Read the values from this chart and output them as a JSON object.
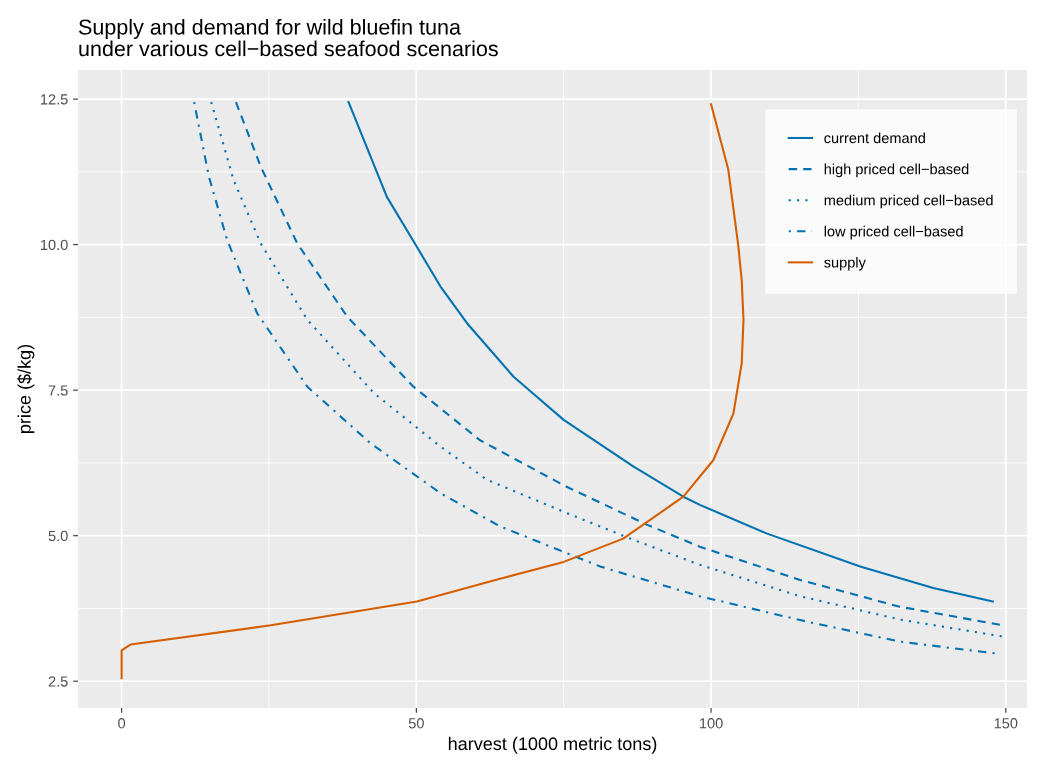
{
  "chart_data": {
    "type": "line",
    "title": "Supply and demand for wild bluefin tuna\nunder various cell−based seafood scenarios",
    "xlabel": "harvest (1000 metric tons)",
    "ylabel": "price ($/kg)",
    "xlim": [
      -7.4,
      153.6
    ],
    "ylim": [
      2.04,
      13.0
    ],
    "xticks": [
      0,
      50,
      100,
      150
    ],
    "yticks": [
      2.5,
      {
        "value": 5,
        "label": "5.0"
      },
      7.5,
      {
        "value": 10,
        "label": "10.0"
      },
      12.5
    ],
    "grid": true,
    "legend": "top right",
    "marker": "none",
    "series": [
      {
        "name": "current demand",
        "color": "#0072b2",
        "line_style": "solid",
        "x": [
          38.5,
          45.0,
          49.8,
          54.1,
          58.6,
          66.5,
          75.0,
          86.8,
          95.3,
          98.1,
          109.4,
          125.3,
          137.7,
          147.8
        ],
        "values": [
          12.45,
          10.82,
          10.01,
          9.28,
          8.65,
          7.73,
          6.99,
          6.19,
          5.67,
          5.53,
          5.04,
          4.47,
          4.1,
          3.87
        ]
      },
      {
        "name": "high priced cell−based",
        "color": "#0072b2",
        "line_style": "dashed",
        "x": [
          19.4,
          23.6,
          29.8,
          38.3,
          49.5,
          60.8,
          75.5,
          89.1,
          98.1,
          115.1,
          132.0,
          149.0
        ],
        "values": [
          12.45,
          11.34,
          10.02,
          8.76,
          7.56,
          6.64,
          5.84,
          5.19,
          4.81,
          4.24,
          3.78,
          3.47
        ]
      },
      {
        "name": "medium priced cell−based",
        "color": "#0072b2",
        "line_style": "dotted",
        "x": [
          15.2,
          19.0,
          23.6,
          31.5,
          42.8,
          54.1,
          62.0,
          75.5,
          86.8,
          98.1,
          115.1,
          132.0,
          149.3
        ],
        "values": [
          12.45,
          11.11,
          10.02,
          8.71,
          7.45,
          6.53,
          5.96,
          5.39,
          4.93,
          4.5,
          3.96,
          3.56,
          3.27
        ]
      },
      {
        "name": "low priced cell−based",
        "color": "#0072b2",
        "line_style": "dashdot",
        "x": [
          12.3,
          14.8,
          17.9,
          23.0,
          31.5,
          42.2,
          54.1,
          64.2,
          81.2,
          98.1,
          115.1,
          132.0,
          148.1
        ],
        "values": [
          12.45,
          11.17,
          10.08,
          8.82,
          7.56,
          6.59,
          5.73,
          5.16,
          4.47,
          3.96,
          3.55,
          3.18,
          2.98
        ]
      },
      {
        "name": "supply",
        "color": "#d55e00",
        "line_style": "solid",
        "x": [
          0,
          0,
          1.5,
          25.3,
          50.1,
          64.2,
          75.0,
          85.1,
          95.3,
          100.4,
          103.8,
          105.2,
          105.5,
          105.2,
          104.6,
          102.9,
          100.0
        ],
        "values": [
          2.55,
          3.03,
          3.13,
          3.46,
          3.87,
          4.26,
          4.55,
          4.95,
          5.67,
          6.3,
          7.1,
          7.96,
          8.71,
          9.39,
          10.0,
          11.3,
          12.41
        ]
      }
    ]
  }
}
